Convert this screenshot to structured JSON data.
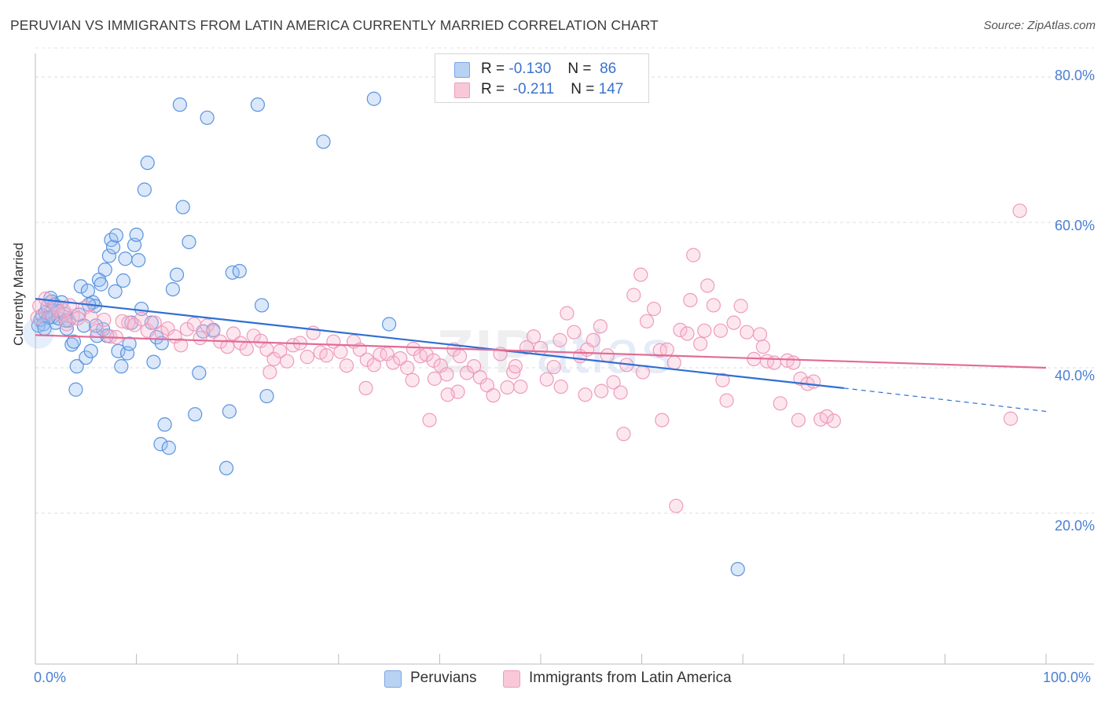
{
  "title": "PERUVIAN VS IMMIGRANTS FROM LATIN AMERICA CURRENTLY MARRIED CORRELATION CHART",
  "source": "Source: ZipAtlas.com",
  "watermark": {
    "zip": "ZIP",
    "atlas": "atlas"
  },
  "legend": {
    "r_label": "R =",
    "n_label": "N =",
    "rows": [
      {
        "r": "-0.130",
        "n": "86",
        "color": "#a8c8f0",
        "border": "#6a9be0"
      },
      {
        "r": "-0.211",
        "n": "147",
        "color": "#f8c0d2",
        "border": "#ee8eb0"
      }
    ]
  },
  "bottom_legend": [
    {
      "label": "Peruvians",
      "color": "#b8d2f4",
      "border": "#7aa5e3"
    },
    {
      "label": "Immigrants from Latin America",
      "color": "#f9c8d8",
      "border": "#ef9bb8"
    }
  ],
  "axes": {
    "ylabel": "Currently Married",
    "x_ticks": [
      "0.0%",
      "100.0%"
    ],
    "y_ticks": [
      "80.0%",
      "60.0%",
      "40.0%",
      "20.0%"
    ]
  },
  "chart_data": {
    "type": "scatter",
    "title": "PERUVIAN VS IMMIGRANTS FROM LATIN AMERICA CURRENTLY MARRIED CORRELATION CHART",
    "xlabel": "",
    "ylabel": "Currently Married",
    "xlim": [
      0,
      100
    ],
    "ylim": [
      0,
      84
    ],
    "grid": true,
    "legend_position": "top-center",
    "series": [
      {
        "name": "Peruvians",
        "color": "#4a86d8",
        "trend": {
          "x0": 0,
          "y0": 49.5,
          "x1": 80,
          "y1": 37.2,
          "dashed_to_x": 100,
          "dashed_to_y": 34.0
        },
        "points": [
          [
            0.3,
            45.8
          ],
          [
            0.5,
            46.6
          ],
          [
            0.7,
            47.2
          ],
          [
            0.8,
            46.0
          ],
          [
            1.0,
            47.6
          ],
          [
            1.2,
            48.4
          ],
          [
            1.5,
            49.6
          ],
          [
            1.7,
            47.0
          ],
          [
            1.9,
            48.7
          ],
          [
            2.0,
            46.2
          ],
          [
            2.3,
            46.8
          ],
          [
            2.6,
            49.0
          ],
          [
            2.9,
            47.4
          ],
          [
            3.1,
            45.4
          ],
          [
            3.3,
            46.5
          ],
          [
            3.6,
            43.2
          ],
          [
            3.8,
            43.6
          ],
          [
            4.1,
            40.2
          ],
          [
            4.3,
            47.3
          ],
          [
            4.5,
            51.2
          ],
          [
            4.8,
            45.8
          ],
          [
            5.0,
            41.4
          ],
          [
            5.2,
            50.6
          ],
          [
            5.5,
            42.3
          ],
          [
            5.7,
            49.0
          ],
          [
            5.9,
            48.5
          ],
          [
            6.1,
            44.4
          ],
          [
            6.3,
            52.1
          ],
          [
            6.5,
            51.5
          ],
          [
            6.7,
            45.3
          ],
          [
            6.9,
            53.5
          ],
          [
            7.1,
            44.4
          ],
          [
            7.3,
            55.4
          ],
          [
            7.5,
            57.6
          ],
          [
            7.7,
            56.6
          ],
          [
            8.0,
            58.2
          ],
          [
            8.2,
            42.3
          ],
          [
            8.5,
            40.2
          ],
          [
            8.7,
            52.0
          ],
          [
            8.9,
            55.0
          ],
          [
            9.1,
            42.0
          ],
          [
            9.3,
            43.3
          ],
          [
            9.5,
            46.2
          ],
          [
            9.8,
            56.9
          ],
          [
            10.0,
            58.3
          ],
          [
            10.2,
            54.8
          ],
          [
            10.5,
            48.1
          ],
          [
            10.8,
            64.5
          ],
          [
            11.1,
            68.2
          ],
          [
            11.5,
            46.2
          ],
          [
            12.0,
            44.2
          ],
          [
            12.4,
            29.5
          ],
          [
            12.8,
            32.2
          ],
          [
            13.2,
            29.0
          ],
          [
            13.6,
            50.8
          ],
          [
            14.0,
            52.8
          ],
          [
            14.6,
            62.1
          ],
          [
            15.2,
            57.3
          ],
          [
            15.8,
            33.6
          ],
          [
            16.2,
            39.3
          ],
          [
            16.6,
            45.0
          ],
          [
            17.0,
            74.4
          ],
          [
            17.6,
            45.2
          ],
          [
            18.9,
            26.2
          ],
          [
            19.2,
            34.0
          ],
          [
            19.5,
            53.1
          ],
          [
            20.2,
            53.3
          ],
          [
            22.0,
            76.2
          ],
          [
            22.4,
            48.6
          ],
          [
            22.9,
            36.1
          ],
          [
            28.5,
            71.1
          ],
          [
            33.5,
            77.0
          ],
          [
            35.0,
            46.0
          ],
          [
            69.5,
            12.3
          ],
          [
            4.0,
            37.0
          ],
          [
            6.0,
            45.8
          ],
          [
            3.0,
            46.5
          ],
          [
            2.2,
            47.8
          ],
          [
            1.3,
            46.9
          ],
          [
            0.9,
            45.4
          ],
          [
            1.6,
            49.1
          ],
          [
            5.3,
            48.7
          ],
          [
            7.9,
            50.5
          ],
          [
            12.5,
            43.4
          ],
          [
            14.3,
            76.2
          ],
          [
            11.7,
            40.8
          ]
        ]
      },
      {
        "name": "Immigrants from Latin America",
        "color": "#e8739c",
        "trend": {
          "x0": 0,
          "y0": 44.5,
          "x1": 100,
          "y1": 40.0
        },
        "points": [
          [
            0.4,
            48.5
          ],
          [
            1.0,
            49.5
          ],
          [
            1.5,
            47.5
          ],
          [
            2.0,
            48.3
          ],
          [
            2.6,
            47.2
          ],
          [
            3.1,
            46.0
          ],
          [
            3.7,
            47.1
          ],
          [
            4.2,
            46.8
          ],
          [
            4.9,
            48.3
          ],
          [
            5.5,
            47.0
          ],
          [
            6.1,
            45.1
          ],
          [
            6.8,
            46.6
          ],
          [
            7.4,
            44.3
          ],
          [
            8.0,
            44.2
          ],
          [
            8.6,
            46.4
          ],
          [
            9.2,
            46.2
          ],
          [
            9.8,
            45.9
          ],
          [
            10.5,
            46.7
          ],
          [
            11.1,
            45.1
          ],
          [
            11.8,
            46.2
          ],
          [
            12.5,
            44.8
          ],
          [
            13.1,
            45.4
          ],
          [
            13.8,
            44.3
          ],
          [
            14.4,
            43.1
          ],
          [
            15.0,
            45.3
          ],
          [
            15.7,
            46.0
          ],
          [
            16.3,
            44.1
          ],
          [
            17.0,
            45.8
          ],
          [
            17.6,
            45.0
          ],
          [
            18.3,
            43.6
          ],
          [
            19.0,
            42.9
          ],
          [
            19.6,
            44.7
          ],
          [
            20.3,
            43.4
          ],
          [
            20.9,
            42.6
          ],
          [
            21.6,
            44.4
          ],
          [
            22.3,
            43.7
          ],
          [
            22.9,
            42.5
          ],
          [
            23.6,
            41.2
          ],
          [
            24.2,
            42.3
          ],
          [
            24.9,
            40.9
          ],
          [
            25.5,
            43.1
          ],
          [
            26.2,
            43.4
          ],
          [
            26.9,
            41.5
          ],
          [
            27.5,
            44.8
          ],
          [
            28.2,
            42.1
          ],
          [
            28.8,
            41.7
          ],
          [
            29.5,
            43.6
          ],
          [
            30.2,
            42.2
          ],
          [
            30.8,
            40.3
          ],
          [
            31.5,
            43.6
          ],
          [
            32.1,
            42.5
          ],
          [
            32.8,
            41.1
          ],
          [
            33.5,
            40.4
          ],
          [
            34.1,
            41.8
          ],
          [
            34.8,
            41.9
          ],
          [
            35.4,
            40.7
          ],
          [
            36.1,
            41.3
          ],
          [
            36.8,
            40.0
          ],
          [
            37.4,
            42.6
          ],
          [
            38.1,
            41.6
          ],
          [
            38.7,
            41.8
          ],
          [
            39.4,
            41.0
          ],
          [
            40.1,
            40.3
          ],
          [
            40.7,
            39.1
          ],
          [
            41.4,
            42.5
          ],
          [
            42.0,
            41.6
          ],
          [
            42.7,
            39.3
          ],
          [
            43.4,
            40.2
          ],
          [
            44.0,
            38.7
          ],
          [
            44.7,
            37.6
          ],
          [
            45.3,
            36.2
          ],
          [
            46.0,
            41.9
          ],
          [
            46.7,
            37.3
          ],
          [
            47.3,
            39.4
          ],
          [
            48.0,
            37.4
          ],
          [
            48.6,
            42.8
          ],
          [
            49.3,
            44.3
          ],
          [
            50.0,
            42.7
          ],
          [
            50.6,
            38.4
          ],
          [
            51.3,
            40.1
          ],
          [
            51.9,
            43.8
          ],
          [
            52.6,
            47.5
          ],
          [
            53.3,
            44.9
          ],
          [
            53.9,
            41.6
          ],
          [
            54.6,
            42.5
          ],
          [
            55.2,
            43.8
          ],
          [
            55.9,
            45.7
          ],
          [
            56.6,
            41.7
          ],
          [
            57.2,
            38.0
          ],
          [
            57.9,
            36.6
          ],
          [
            58.5,
            40.4
          ],
          [
            59.2,
            50.0
          ],
          [
            59.9,
            52.8
          ],
          [
            60.5,
            46.4
          ],
          [
            61.2,
            48.1
          ],
          [
            61.8,
            42.4
          ],
          [
            62.5,
            42.5
          ],
          [
            63.2,
            40.7
          ],
          [
            63.8,
            45.2
          ],
          [
            64.5,
            44.7
          ],
          [
            65.1,
            55.5
          ],
          [
            65.8,
            43.3
          ],
          [
            66.5,
            51.3
          ],
          [
            67.1,
            48.6
          ],
          [
            67.8,
            45.1
          ],
          [
            68.4,
            35.5
          ],
          [
            69.1,
            46.2
          ],
          [
            69.8,
            48.5
          ],
          [
            70.4,
            44.9
          ],
          [
            71.1,
            41.2
          ],
          [
            71.7,
            44.6
          ],
          [
            72.4,
            40.9
          ],
          [
            73.1,
            40.7
          ],
          [
            73.7,
            35.1
          ],
          [
            74.4,
            41.0
          ],
          [
            75.0,
            40.7
          ],
          [
            75.7,
            38.5
          ],
          [
            76.4,
            37.8
          ],
          [
            77.0,
            38.1
          ],
          [
            77.7,
            32.9
          ],
          [
            78.3,
            33.3
          ],
          [
            79.0,
            32.7
          ],
          [
            23.2,
            39.4
          ],
          [
            32.7,
            37.2
          ],
          [
            37.3,
            38.3
          ],
          [
            39.5,
            38.5
          ],
          [
            41.8,
            36.7
          ],
          [
            47.5,
            40.2
          ],
          [
            52.0,
            37.4
          ],
          [
            54.4,
            36.3
          ],
          [
            56.0,
            36.8
          ],
          [
            58.2,
            30.9
          ],
          [
            60.1,
            39.4
          ],
          [
            62.0,
            32.8
          ],
          [
            63.4,
            21.0
          ],
          [
            64.8,
            49.3
          ],
          [
            66.2,
            45.1
          ],
          [
            68.0,
            38.3
          ],
          [
            72.0,
            42.9
          ],
          [
            75.5,
            32.8
          ],
          [
            97.4,
            61.6
          ],
          [
            96.5,
            33.0
          ],
          [
            39.0,
            32.8
          ],
          [
            40.8,
            36.3
          ],
          [
            0.2,
            46.9
          ],
          [
            2.8,
            47.9
          ],
          [
            3.4,
            48.6
          ]
        ]
      }
    ]
  }
}
